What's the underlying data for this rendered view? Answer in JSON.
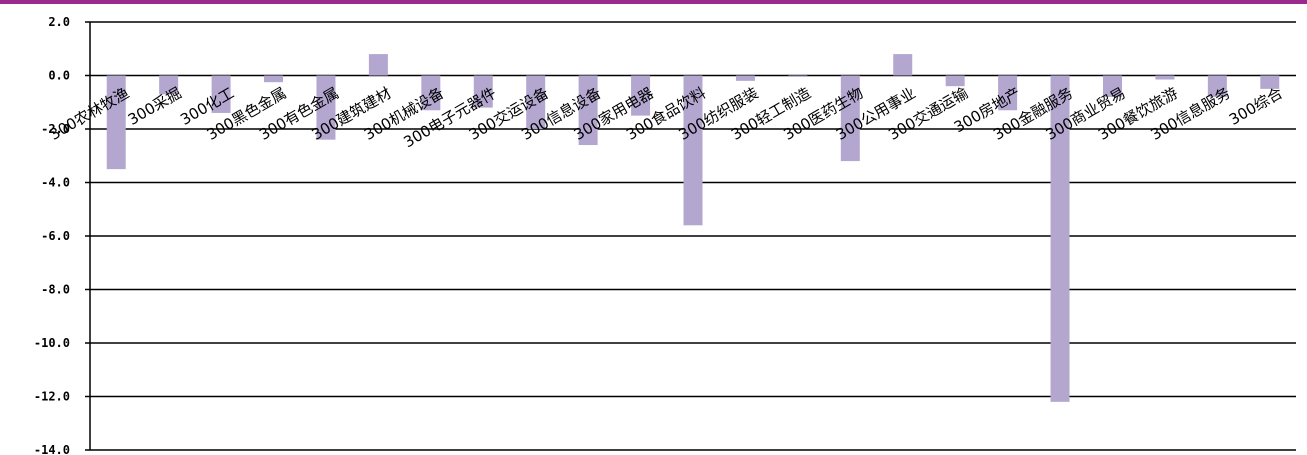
{
  "colors": {
    "bar": "#b3a7d0",
    "grid": "#000000",
    "topbar": "#9b2a8e"
  },
  "chart_data": {
    "type": "bar",
    "title": "",
    "xlabel": "",
    "ylabel": "",
    "ylim": [
      -14,
      2
    ],
    "grid": true,
    "legend": "none",
    "y_ticks": [
      "2.0",
      "0.0",
      "-2.0",
      "-4.0",
      "-6.0",
      "-8.0",
      "-10.0",
      "-12.0",
      "-14.0"
    ],
    "categories": [
      "300农林牧渔",
      "300采掘",
      "300化工",
      "300黑色金属",
      "300有色金属",
      "300建筑建材",
      "300机械设备",
      "300电子元器件",
      "300交运设备",
      "300信息设备",
      "300家用电器",
      "300食品饮料",
      "300纺织服装",
      "300轻工制造",
      "300医药生物",
      "300公用事业",
      "300交通运输",
      "300房地产",
      "300金融服务",
      "300商业贸易",
      "300餐饮旅游",
      "300信息服务",
      "300综合"
    ],
    "values": [
      -3.5,
      -0.7,
      -1.4,
      -0.25,
      -2.4,
      0.8,
      -1.3,
      -1.2,
      -2.0,
      -2.6,
      -1.5,
      -5.6,
      -0.2,
      -0.05,
      -3.2,
      0.8,
      -0.4,
      -1.3,
      -12.2,
      -0.8,
      -0.15,
      -0.8,
      -0.5
    ]
  }
}
